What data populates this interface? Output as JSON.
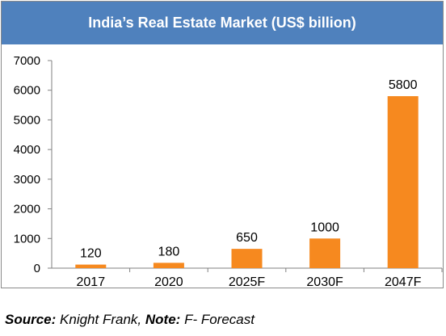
{
  "colors": {
    "title_bg": "#4f81bd",
    "bar": "#f6891f",
    "axis": "#808080"
  },
  "chart_data": {
    "type": "bar",
    "title": "India’s Real Estate Market (US$ billion)",
    "categories": [
      "2017",
      "2020",
      "2025F",
      "2030F",
      "2047F"
    ],
    "series": [
      {
        "values": [
          120,
          180,
          650,
          1000,
          5800
        ]
      }
    ],
    "data_labels": [
      "120",
      "180",
      "650",
      "1000",
      "5800"
    ],
    "yticks": [
      0,
      1000,
      2000,
      3000,
      4000,
      5000,
      6000,
      7000
    ],
    "ylim": [
      0,
      7000
    ],
    "grid": false,
    "legend": "none"
  },
  "footer": {
    "source_label": "Source:",
    "source_value": "Knight Frank,",
    "note_label": "Note:",
    "note_value": "F- Forecast"
  }
}
